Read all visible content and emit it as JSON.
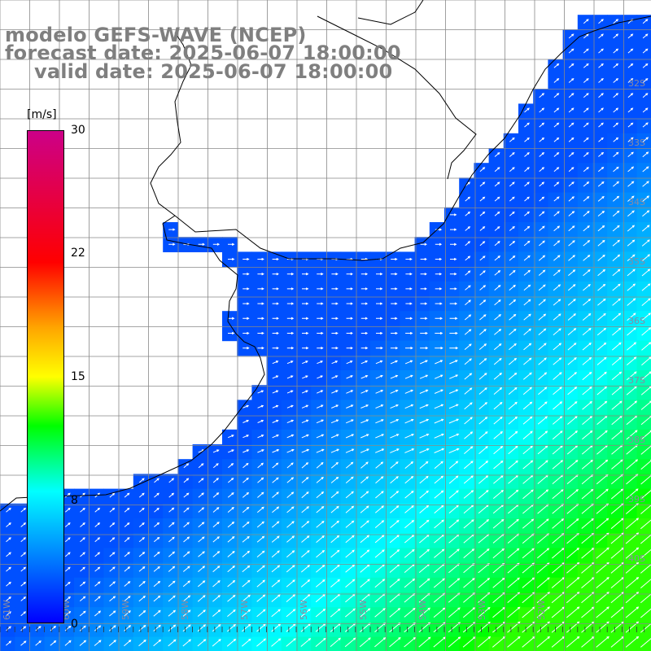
{
  "title": {
    "line1": "modelo GEFS-WAVE (NCEP)",
    "line2": "forecast date: 2025-06-07 18:00:00",
    "line3": "valid date: 2025-06-07 18:00:00"
  },
  "colorbar": {
    "unit": "[m/s]",
    "ticks": [
      "30",
      "22",
      "15",
      "8",
      "0"
    ],
    "min": 0,
    "max": 30,
    "stops": [
      {
        "value": 0,
        "color": "#0000ff"
      },
      {
        "value": 4,
        "color": "#0080ff"
      },
      {
        "value": 8,
        "color": "#00ffff"
      },
      {
        "value": 12,
        "color": "#00ff00"
      },
      {
        "value": 15,
        "color": "#ffff00"
      },
      {
        "value": 18,
        "color": "#ffa500"
      },
      {
        "value": 22,
        "color": "#ff0000"
      },
      {
        "value": 30,
        "color": "#cc0088"
      }
    ]
  },
  "longitude_labels": [
    "61W",
    "60W",
    "59W",
    "58W",
    "57W",
    "56W",
    "55W",
    "54W",
    "53W",
    "52W"
  ],
  "latitude_labels": [
    "32S",
    "33S",
    "34S",
    "35S",
    "36S",
    "37S",
    "38S",
    "39S",
    "40S"
  ],
  "colors": {
    "land": "#ffffff",
    "grid": "#888888",
    "coast": "#000000",
    "arrow": "#ffffff",
    "title": "#7f7f7f"
  }
}
